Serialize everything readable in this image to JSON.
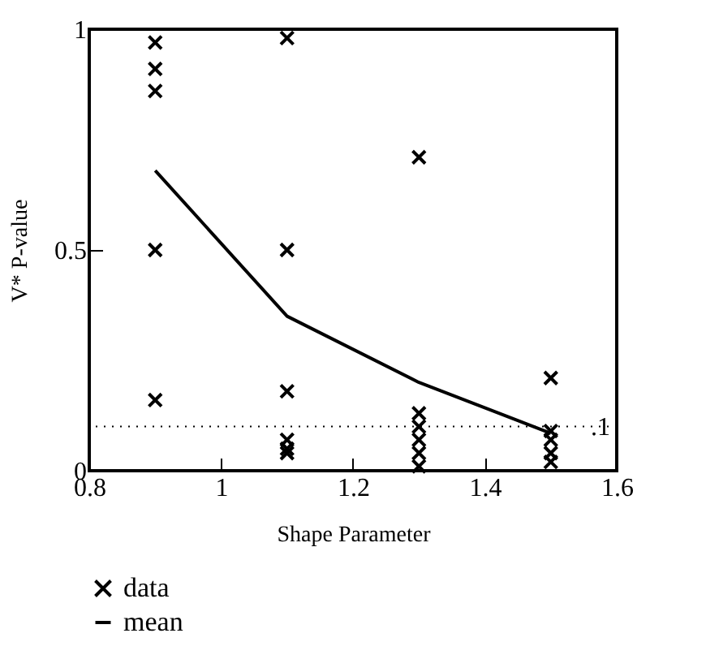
{
  "chart_data": {
    "type": "scatter",
    "xlabel": "Shape Parameter",
    "ylabel": "V* P-value",
    "xlim": [
      0.8,
      1.6
    ],
    "xticks": [
      0.8,
      1,
      1.2,
      1.4,
      1.6
    ],
    "ylim": [
      0,
      1
    ],
    "yticks": [
      0,
      0.5,
      1
    ],
    "grid": false,
    "legend": "bottom",
    "series": [
      {
        "name": "data",
        "marker": "cross",
        "color": "#000000",
        "x": [
          0.9,
          0.9,
          0.9,
          0.9,
          0.9,
          1.1,
          1.1,
          1.1,
          1.1,
          1.1,
          1.1,
          1.3,
          1.3,
          1.3,
          1.3,
          1.3,
          1.3,
          1.5,
          1.5,
          1.5,
          1.5,
          1.5
        ],
        "values": [
          0.97,
          0.91,
          0.86,
          0.5,
          0.16,
          0.98,
          0.5,
          0.18,
          0.07,
          0.05,
          0.04,
          0.71,
          0.13,
          0.1,
          0.07,
          0.04,
          0.01,
          0.21,
          0.09,
          0.07,
          0.04,
          0.02
        ]
      },
      {
        "name": "mean",
        "type": "line",
        "marker": "none",
        "color": "#000000",
        "x": [
          0.9,
          1.1,
          1.3,
          1.5
        ],
        "values": [
          0.68,
          0.35,
          0.2,
          0.085
        ]
      }
    ],
    "ref_lines": [
      {
        "axis": "y",
        "value": 0.1,
        "label": ".1",
        "line_style": "dotted",
        "color": "#000000"
      }
    ]
  }
}
